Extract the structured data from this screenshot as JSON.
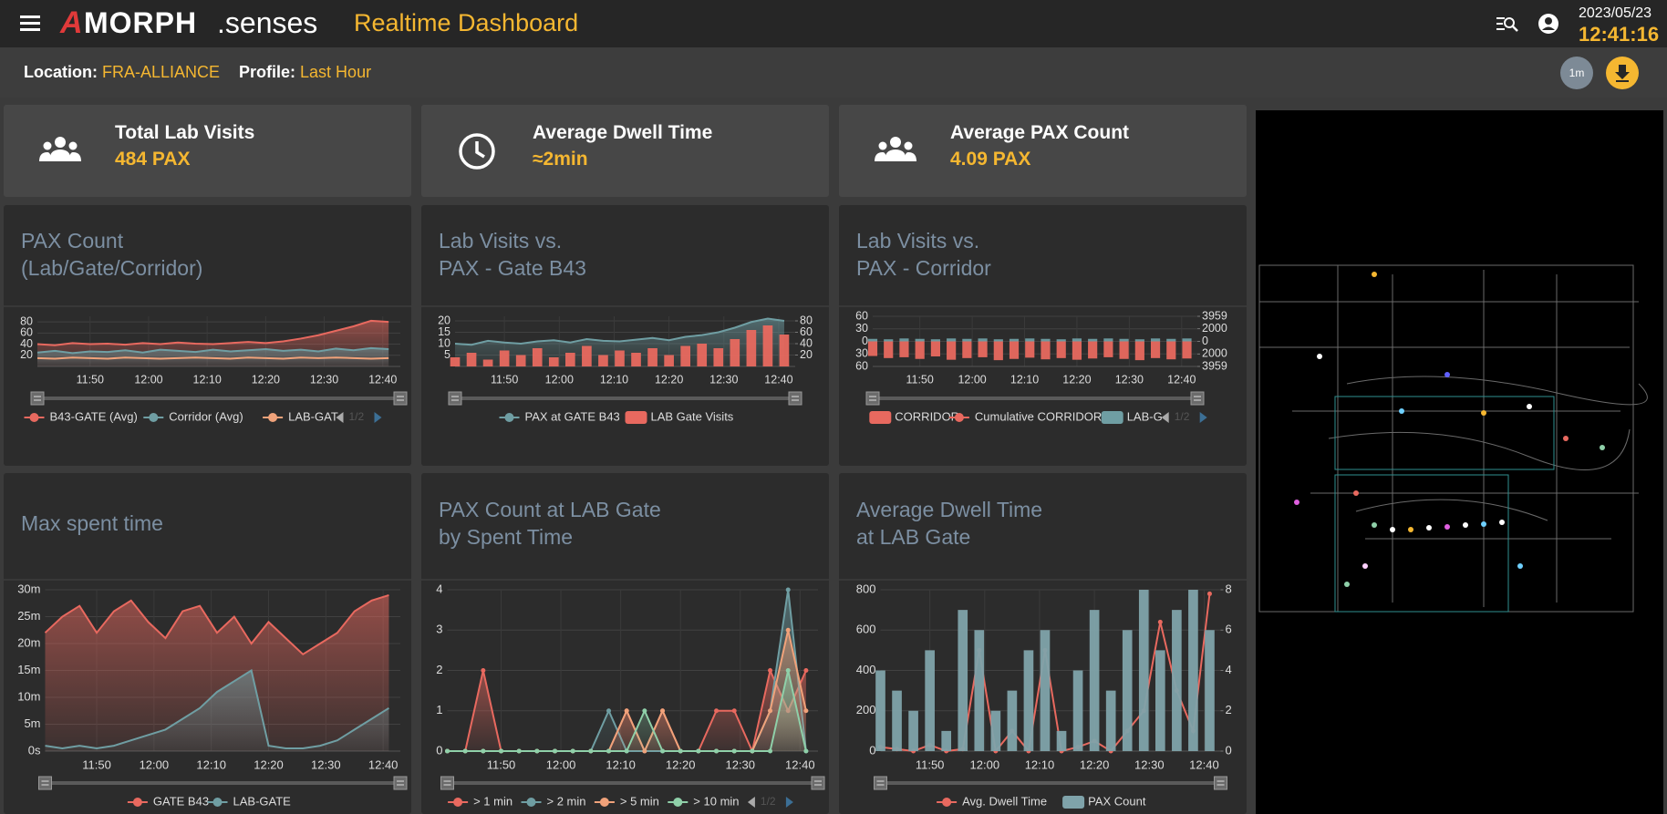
{
  "header": {
    "logo_mark": "A",
    "logo_text": "MORPH",
    "logo_suffix": ".senses",
    "title": "Realtime Dashboard",
    "date": "2023/05/23",
    "time": "12:41:16"
  },
  "filters": {
    "location_label": "Location:",
    "location": "FRA-ALLIANCE",
    "profile_label": "Profile:",
    "profile": "Last Hour",
    "interval_button": "1m"
  },
  "kpis": [
    {
      "title": "Total Lab Visits",
      "value": "484 PAX"
    },
    {
      "title": "Average Dwell Time",
      "value": "≈2min"
    },
    {
      "title": "Average PAX Count",
      "value": "4.09 PAX"
    }
  ],
  "panels": [
    {
      "title_lines": [
        "PAX Count",
        "(Lab/Gate/Corridor)"
      ],
      "chart": {
        "type": "line",
        "grid": true,
        "legend_page": "1/2",
        "x": [
          0,
          3,
          6,
          9,
          12,
          15,
          18,
          21,
          24,
          27,
          30,
          33,
          36,
          39,
          42,
          45,
          48,
          51,
          54,
          57,
          60
        ],
        "xlim": [
          0,
          62
        ],
        "xticks": [
          {
            "value": 9,
            "label": "11:50"
          },
          {
            "value": 19,
            "label": "12:00"
          },
          {
            "value": 29,
            "label": "12:10"
          },
          {
            "value": 39,
            "label": "12:20"
          },
          {
            "value": 49,
            "label": "12:30"
          },
          {
            "value": 59,
            "label": "12:40"
          }
        ],
        "ylim": [
          0,
          90
        ],
        "yticks": [
          20,
          40,
          60,
          80
        ],
        "series": [
          {
            "name": "B43-GATE (Avg)",
            "color": "#e8695f",
            "type": "area",
            "values": [
              40,
              38,
              42,
              40,
              41,
              39,
              42,
              40,
              43,
              41,
              40,
              42,
              44,
              42,
              45,
              50,
              56,
              64,
              72,
              82,
              80
            ]
          },
          {
            "name": "Corridor (Avg)",
            "color": "#6f9ea3",
            "type": "area",
            "values": [
              25,
              28,
              24,
              27,
              26,
              29,
              25,
              30,
              28,
              26,
              30,
              27,
              29,
              31,
              28,
              30,
              27,
              32,
              29,
              33,
              31
            ]
          },
          {
            "name": "LAB-GAT",
            "color": "#f0a27a",
            "type": "line",
            "values": [
              15,
              14,
              16,
              15,
              14,
              16,
              15,
              14,
              15,
              16,
              15,
              14,
              16,
              15,
              14,
              16,
              15,
              16,
              15,
              14,
              15
            ]
          }
        ]
      }
    },
    {
      "title_lines": [
        "Lab Visits vs.",
        "PAX - Gate B43"
      ],
      "chart": {
        "type": "bar",
        "grid": true,
        "x": [
          0,
          3,
          6,
          9,
          12,
          15,
          18,
          21,
          24,
          27,
          30,
          33,
          36,
          39,
          42,
          45,
          48,
          51,
          54,
          57,
          60
        ],
        "xlim": [
          0,
          62
        ],
        "xticks": [
          {
            "value": 9,
            "label": "11:50"
          },
          {
            "value": 19,
            "label": "12:00"
          },
          {
            "value": 29,
            "label": "12:10"
          },
          {
            "value": 39,
            "label": "12:20"
          },
          {
            "value": 49,
            "label": "12:30"
          },
          {
            "value": 59,
            "label": "12:40"
          }
        ],
        "ylim": [
          0,
          22
        ],
        "yticks": [
          5,
          10,
          15,
          20
        ],
        "y2lim": [
          0,
          88
        ],
        "y2ticks": [
          20,
          40,
          60,
          80
        ],
        "series": [
          {
            "name": "PAX at GATE B43",
            "color": "#6f9ea3",
            "type": "area",
            "axis": "y2",
            "values": [
              40,
              38,
              45,
              42,
              40,
              44,
              46,
              42,
              48,
              45,
              44,
              47,
              50,
              46,
              52,
              55,
              60,
              68,
              78,
              84,
              80
            ]
          },
          {
            "name": "LAB Gate Visits",
            "color": "#e8695f",
            "type": "bar",
            "values": [
              4,
              6,
              3,
              7,
              5,
              8,
              4,
              6,
              9,
              5,
              7,
              6,
              8,
              5,
              9,
              10,
              8,
              12,
              16,
              18,
              14
            ]
          }
        ]
      }
    },
    {
      "title_lines": [
        "Lab Visits vs.",
        "PAX - Corridor"
      ],
      "chart": {
        "type": "bar",
        "grid": true,
        "legend_page": "1/2",
        "x": [
          0,
          3,
          6,
          9,
          12,
          15,
          18,
          21,
          24,
          27,
          30,
          33,
          36,
          39,
          42,
          45,
          48,
          51,
          54,
          57,
          60
        ],
        "xlim": [
          0,
          62
        ],
        "xticks": [
          {
            "value": 9,
            "label": "11:50"
          },
          {
            "value": 19,
            "label": "12:00"
          },
          {
            "value": 29,
            "label": "12:10"
          },
          {
            "value": 39,
            "label": "12:20"
          },
          {
            "value": 49,
            "label": "12:30"
          },
          {
            "value": 59,
            "label": "12:40"
          }
        ],
        "ylim": [
          -60,
          60
        ],
        "yticks": [
          60,
          30,
          0,
          {
            "value": -30,
            "label": "30"
          },
          {
            "value": -60,
            "label": "60"
          }
        ],
        "y2lim": [
          -3959,
          3959
        ],
        "y2ticks": [
          3959,
          2000,
          0,
          {
            "value": -2000,
            "label": "2000"
          },
          {
            "value": -3959,
            "label": "3959"
          }
        ],
        "series": [
          {
            "name": "CORRIDOR",
            "color": "#e8695f",
            "type": "bar",
            "values": [
              -35,
              -40,
              -38,
              -42,
              -36,
              -44,
              -40,
              -38,
              -45,
              -42,
              -39,
              -43,
              -40,
              -44,
              -41,
              -38,
              -42,
              -45,
              -40,
              -43,
              -41
            ]
          },
          {
            "name": "Cumulative CORRIDOR",
            "color": "#e8695f",
            "type": "line",
            "axis": "y2",
            "values": [
              null,
              null,
              null,
              null,
              null,
              null,
              null,
              null,
              null,
              null,
              null,
              null,
              null,
              null,
              null,
              null,
              null,
              null,
              null,
              null,
              null
            ]
          },
          {
            "name": "LAB-G",
            "color": "#6f9ea3",
            "type": "bar",
            "values": [
              6,
              5,
              7,
              6,
              5,
              7,
              6,
              7,
              5,
              6,
              7,
              6,
              5,
              7,
              6,
              7,
              6,
              5,
              7,
              6,
              7
            ]
          }
        ]
      }
    },
    {
      "title_lines": [
        "Max spent time"
      ],
      "chart": {
        "type": "line",
        "grid": true,
        "x": [
          0,
          3,
          6,
          9,
          12,
          15,
          18,
          21,
          24,
          27,
          30,
          33,
          36,
          39,
          42,
          45,
          48,
          51,
          54,
          57,
          60
        ],
        "xlim": [
          0,
          62
        ],
        "xticks": [
          {
            "value": 9,
            "label": "11:50"
          },
          {
            "value": 19,
            "label": "12:00"
          },
          {
            "value": 29,
            "label": "12:10"
          },
          {
            "value": 39,
            "label": "12:20"
          },
          {
            "value": 49,
            "label": "12:30"
          },
          {
            "value": 59,
            "label": "12:40"
          }
        ],
        "ylim": [
          0,
          30
        ],
        "yticks": [
          {
            "value": 0,
            "label": "0s"
          },
          {
            "value": 5,
            "label": "5m"
          },
          {
            "value": 10,
            "label": "10m"
          },
          {
            "value": 15,
            "label": "15m"
          },
          {
            "value": 20,
            "label": "20m"
          },
          {
            "value": 25,
            "label": "25m"
          },
          {
            "value": 30,
            "label": "30m"
          }
        ],
        "series": [
          {
            "name": "GATE B43",
            "color": "#e8695f",
            "type": "area",
            "values": [
              22,
              25,
              27,
              22,
              26,
              28,
              24,
              21,
              26,
              27,
              22,
              25,
              20,
              24,
              21,
              18,
              20,
              22,
              26,
              28,
              29
            ]
          },
          {
            "name": "LAB-GATE",
            "color": "#6f9ea3",
            "type": "area",
            "values": [
              1,
              0.5,
              1,
              0.5,
              1,
              2,
              3,
              4,
              6,
              8,
              11,
              13,
              15,
              1,
              0.5,
              0.5,
              1,
              2,
              4,
              6,
              8
            ]
          }
        ]
      }
    },
    {
      "title_lines": [
        "PAX Count at LAB Gate",
        "by Spent Time"
      ],
      "chart": {
        "type": "line",
        "grid": true,
        "legend_page": "1/2",
        "x": [
          0,
          3,
          6,
          9,
          12,
          15,
          18,
          21,
          24,
          27,
          30,
          33,
          36,
          39,
          42,
          45,
          48,
          51,
          54,
          57,
          60
        ],
        "xlim": [
          0,
          62
        ],
        "xticks": [
          {
            "value": 9,
            "label": "11:50"
          },
          {
            "value": 19,
            "label": "12:00"
          },
          {
            "value": 29,
            "label": "12:10"
          },
          {
            "value": 39,
            "label": "12:20"
          },
          {
            "value": 49,
            "label": "12:30"
          },
          {
            "value": 59,
            "label": "12:40"
          }
        ],
        "ylim": [
          0,
          4
        ],
        "yticks": [
          0,
          1,
          2,
          3,
          4
        ],
        "series": [
          {
            "name": "> 1 min",
            "color": "#e8695f",
            "type": "area",
            "markers": true,
            "values": [
              0,
              0,
              2,
              0,
              0,
              0,
              0,
              0,
              0,
              0,
              1,
              0,
              1,
              0,
              0,
              1,
              1,
              0,
              2,
              1,
              2
            ]
          },
          {
            "name": "> 2 min",
            "color": "#6f9ea3",
            "type": "area",
            "markers": true,
            "values": [
              0,
              0,
              0,
              0,
              0,
              0,
              0,
              0,
              0,
              1,
              0,
              0,
              0,
              0,
              0,
              0,
              0,
              0,
              1,
              4,
              0
            ]
          },
          {
            "name": "> 5 min",
            "color": "#f0a27a",
            "type": "area",
            "markers": true,
            "values": [
              0,
              0,
              0,
              0,
              0,
              0,
              0,
              0,
              0,
              0,
              1,
              0,
              1,
              0,
              0,
              0,
              0,
              0,
              1,
              3,
              1
            ]
          },
          {
            "name": "> 10 min",
            "color": "#8fd0a9",
            "type": "area",
            "markers": true,
            "values": [
              0,
              0,
              0,
              0,
              0,
              0,
              0,
              0,
              0,
              0,
              0,
              1,
              0,
              0,
              0,
              0,
              0,
              0,
              0,
              2,
              0
            ]
          }
        ]
      }
    },
    {
      "title_lines": [
        "Average Dwell Time",
        "at LAB Gate"
      ],
      "chart": {
        "type": "bar",
        "grid": true,
        "x": [
          0,
          3,
          6,
          9,
          12,
          15,
          18,
          21,
          24,
          27,
          30,
          33,
          36,
          39,
          42,
          45,
          48,
          51,
          54,
          57,
          60
        ],
        "xlim": [
          0,
          62
        ],
        "xticks": [
          {
            "value": 9,
            "label": "11:50"
          },
          {
            "value": 19,
            "label": "12:00"
          },
          {
            "value": 29,
            "label": "12:10"
          },
          {
            "value": 39,
            "label": "12:20"
          },
          {
            "value": 49,
            "label": "12:30"
          },
          {
            "value": 59,
            "label": "12:40"
          }
        ],
        "ylim": [
          0,
          800
        ],
        "yticks": [
          0,
          200,
          400,
          600,
          800
        ],
        "y2lim": [
          0,
          8
        ],
        "y2ticks": [
          0,
          2,
          4,
          6,
          8
        ],
        "series": [
          {
            "name": "Avg. Dwell Time",
            "color": "#e8695f",
            "type": "line",
            "markers": true,
            "values": [
              20,
              10,
              0,
              30,
              0,
              10,
              500,
              0,
              100,
              0,
              500,
              0,
              20,
              50,
              0,
              100,
              200,
              640,
              300,
              100,
              780
            ]
          },
          {
            "name": "PAX Count",
            "color": "#7fa3aa",
            "type": "bar",
            "axis": "y2",
            "values": [
              4,
              3,
              2,
              5,
              1,
              7,
              6,
              2,
              3,
              5,
              6,
              1,
              4,
              7,
              3,
              6,
              8,
              5,
              7,
              8,
              6
            ]
          }
        ]
      }
    }
  ]
}
